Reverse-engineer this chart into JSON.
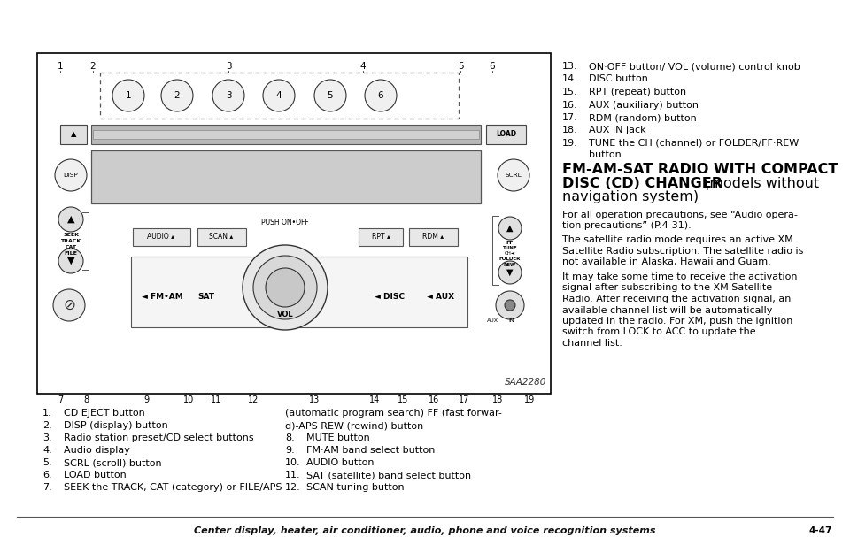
{
  "bg_color": "#ffffff",
  "page_title": "Center display, heater, air conditioner, audio, phone and voice recognition systems",
  "page_num": "4-47",
  "image_label": "SAA2280",
  "left_list": [
    {
      "num": "1.",
      "text": "CD EJECT button"
    },
    {
      "num": "2.",
      "text": "DISP (display) button"
    },
    {
      "num": "3.",
      "text": "Radio station preset/CD select buttons"
    },
    {
      "num": "4.",
      "text": "Audio display"
    },
    {
      "num": "5.",
      "text": "SCRL (scroll) button"
    },
    {
      "num": "6.",
      "text": "LOAD button"
    },
    {
      "num": "7.",
      "text": "SEEK the TRACK, CAT (category) or FILE/APS"
    }
  ],
  "mid_list_header": "(automatic program search) FF (fast forward)-APS REW (rewind) button",
  "mid_list": [
    {
      "num": "8.",
      "text": "MUTE button"
    },
    {
      "num": "9.",
      "text": "FM·AM band select button"
    },
    {
      "num": "10.",
      "text": "AUDIO button"
    },
    {
      "num": "11.",
      "text": "SAT (satellite) band select button"
    },
    {
      "num": "12.",
      "text": "SCAN tuning button"
    }
  ],
  "right_list": [
    {
      "num": "13.",
      "text": "ON·OFF button/ VOL (volume) control knob"
    },
    {
      "num": "14.",
      "text": "DISC button"
    },
    {
      "num": "15.",
      "text": "RPT (repeat) button"
    },
    {
      "num": "16.",
      "text": "AUX (auxiliary) button"
    },
    {
      "num": "17.",
      "text": "RDM (random) button"
    },
    {
      "num": "18.",
      "text": "AUX IN jack"
    },
    {
      "num": "19.",
      "text": "TUNE the CH (channel) or FOLDER/FF·REW button"
    }
  ],
  "section_heading_bold": "FM-AM-SAT RADIO WITH COMPACT\nDISC (CD) CHANGER",
  "section_heading_normal": " (models without\nnavigation system)",
  "para1": "For all operation precautions, see “Audio opera-\ntion precautions” (P.4-31).",
  "para2": "The satellite radio mode requires an active XM\nSatellite Radio subscription. The satellite radio is\nnot available in Alaska, Hawaii and Guam.",
  "para3": "It may take some time to receive the activation\nsignal after subscribing to the XM Satellite\nRadio. After receiving the activation signal, an\navailable channel list will be automatically\nupdated in the radio. For XM, push the ignition\nswitch from LOCK to ACC to update the\nchannel list."
}
